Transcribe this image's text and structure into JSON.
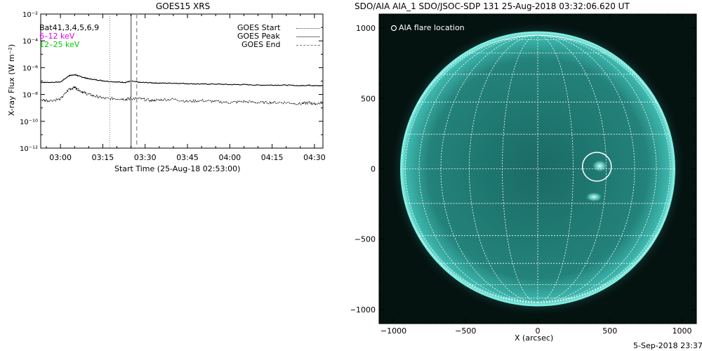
{
  "goes": {
    "title": "GOES15 XRS",
    "xlabel": "Start Time (25-Aug-18 02:53:00)",
    "ylabel": "X-ray Flux (W m⁻²)",
    "legend_left": [
      {
        "text": "Bat41,3,4,5,6,9",
        "color": "#000000"
      },
      {
        "text": "6–12 keV",
        "color": "#e000e0"
      },
      {
        "text": "12–25 keV",
        "color": "#00c800"
      }
    ],
    "legend_right": [
      {
        "text": "GOES Start",
        "style": "dotted"
      },
      {
        "text": "GOES Peak",
        "style": "solid"
      },
      {
        "text": "GOES End",
        "style": "dashed"
      }
    ]
  },
  "aia": {
    "title": "SDO/AIA AIA_1 SDO/JSOC-SDP 131 25-Aug-2018 03:32:06.620 UT",
    "legend": "AIA flare location",
    "xlabel": "X (arcsec)",
    "footer": "5-Sep-2018 23:37",
    "colors": {
      "disk": "#1e7a74",
      "limb": "#7ff0e6",
      "background": "#041210"
    }
  },
  "chart_data": [
    {
      "type": "line",
      "title": "GOES15 XRS",
      "xlabel": "Start Time (25-Aug-18 02:53:00)",
      "ylabel": "X-ray Flux (W m⁻²)",
      "x_ticks": [
        "03:00",
        "03:15",
        "03:30",
        "03:45",
        "04:00",
        "04:15",
        "04:30"
      ],
      "x_tick_minutes": [
        180,
        195,
        210,
        225,
        240,
        255,
        270
      ],
      "xlim_minutes": [
        173,
        273
      ],
      "y_scale": "log",
      "ylim": [
        1e-12,
        0.01
      ],
      "y_ticks": [
        "10⁻¹²",
        "10⁻¹⁰",
        "10⁻⁸",
        "10⁻⁶",
        "10⁻⁴",
        "10⁻²"
      ],
      "y_tick_exponents": [
        -12,
        -10,
        -8,
        -6,
        -4,
        -2
      ],
      "markers": {
        "start_minutes": 197.5,
        "peak_minutes": 205,
        "end_minutes": 207
      },
      "series": [
        {
          "name": "6–12 keV",
          "x": [
            173,
            176,
            180,
            183,
            185,
            186,
            188,
            190,
            193,
            196,
            200,
            203,
            205,
            208,
            212,
            215,
            220,
            225,
            230,
            235,
            240,
            245,
            250,
            255,
            260,
            265,
            268,
            270,
            273
          ],
          "y": [
            8e-08,
            8e-08,
            8.5e-08,
            2.5e-07,
            3e-07,
            2.6e-07,
            1.9e-07,
            1.5e-07,
            1.2e-07,
            1e-07,
            8.5e-08,
            8e-08,
            1e-07,
            8e-08,
            7.5e-08,
            7e-08,
            7e-08,
            6.5e-08,
            6e-08,
            6e-08,
            5.5e-08,
            5.5e-08,
            5e-08,
            5e-08,
            5e-08,
            4.5e-08,
            5e-08,
            4.5e-08,
            4.5e-08
          ]
        },
        {
          "name": "12–25 keV",
          "x": [
            173,
            176,
            180,
            183,
            185,
            186,
            188,
            190,
            193,
            196,
            200,
            203,
            205,
            208,
            212,
            215,
            220,
            225,
            230,
            235,
            240,
            245,
            250,
            255,
            260,
            265,
            268,
            270,
            273
          ],
          "y": [
            4e-09,
            3.5e-09,
            4.5e-09,
            2.5e-08,
            3.5e-08,
            2.5e-08,
            1.5e-08,
            1e-08,
            7e-09,
            5e-09,
            5e-09,
            4.5e-09,
            5e-09,
            5e-09,
            3.5e-09,
            4e-09,
            4.5e-09,
            3e-09,
            3.5e-09,
            3e-09,
            2.5e-09,
            3e-09,
            2.5e-09,
            2.5e-09,
            2.5e-09,
            2e-09,
            2.5e-09,
            2e-09,
            2.5e-09
          ]
        }
      ]
    },
    {
      "type": "scatter",
      "title": "SDO/AIA AIA_1 SDO/JSOC-SDP 131 25-Aug-2018 03:32:06.620 UT",
      "xlabel": "X (arcsec)",
      "ylabel": "",
      "xlim": [
        -1100,
        1100
      ],
      "ylim": [
        -1100,
        1100
      ],
      "x_ticks": [
        -1000,
        -500,
        0,
        500,
        1000
      ],
      "y_ticks": [
        -1000,
        -500,
        0,
        500,
        1000
      ],
      "solar_radius_arcsec": 950,
      "series": [
        {
          "name": "AIA flare location",
          "x": [
            410
          ],
          "y": [
            15
          ],
          "circle_radius_arcsec": 100
        }
      ]
    }
  ]
}
